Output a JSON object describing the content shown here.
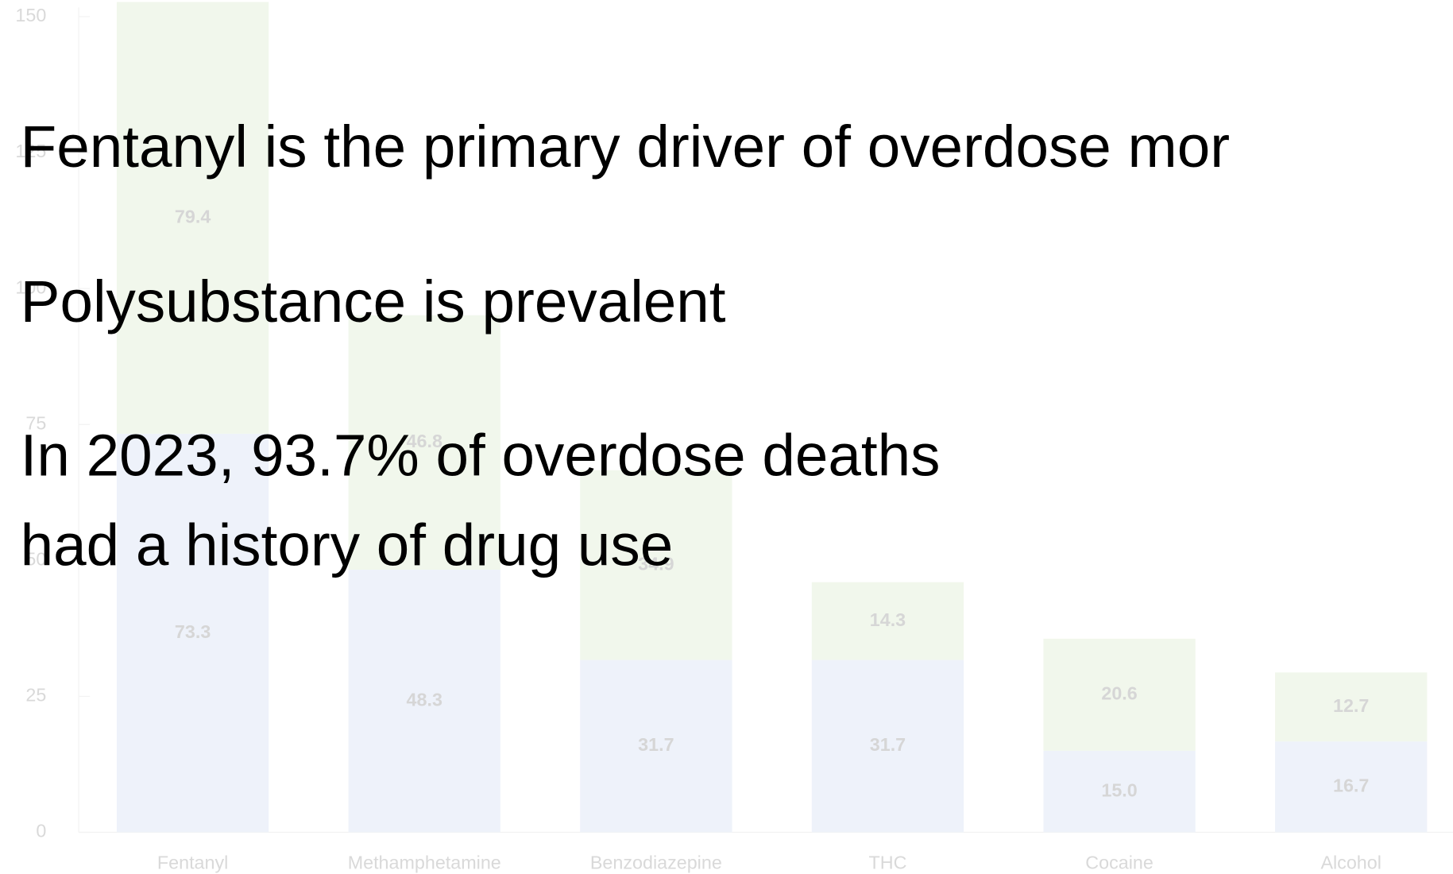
{
  "slide": {
    "lines": [
      "Fentanyl is the primary driver of overdose mor",
      "Polysubstance is prevalent",
      "In 2023, 93.7% of overdose deaths",
      "had a history of drug use"
    ]
  },
  "chart_data": {
    "type": "stacked_bar",
    "categories": [
      "Fentanyl",
      "Methamphetamine",
      "Benzodiazepine",
      "THC",
      "Cocaine",
      "Alcohol"
    ],
    "series": [
      {
        "color": "#eef2fa",
        "values": [
          73.3,
          48.3,
          31.7,
          31.7,
          15.0,
          16.7
        ],
        "value_labels": [
          "73.3",
          "48.3",
          "31.7",
          "31.7",
          "15.0",
          "16.7"
        ]
      },
      {
        "color": "#f1f7ec",
        "values": [
          79.4,
          46.8,
          34.9,
          14.3,
          20.6,
          12.7
        ]
      }
    ],
    "ylim": [
      0,
      150
    ],
    "yticks": [
      0,
      25,
      50,
      75,
      100,
      125,
      150
    ]
  }
}
